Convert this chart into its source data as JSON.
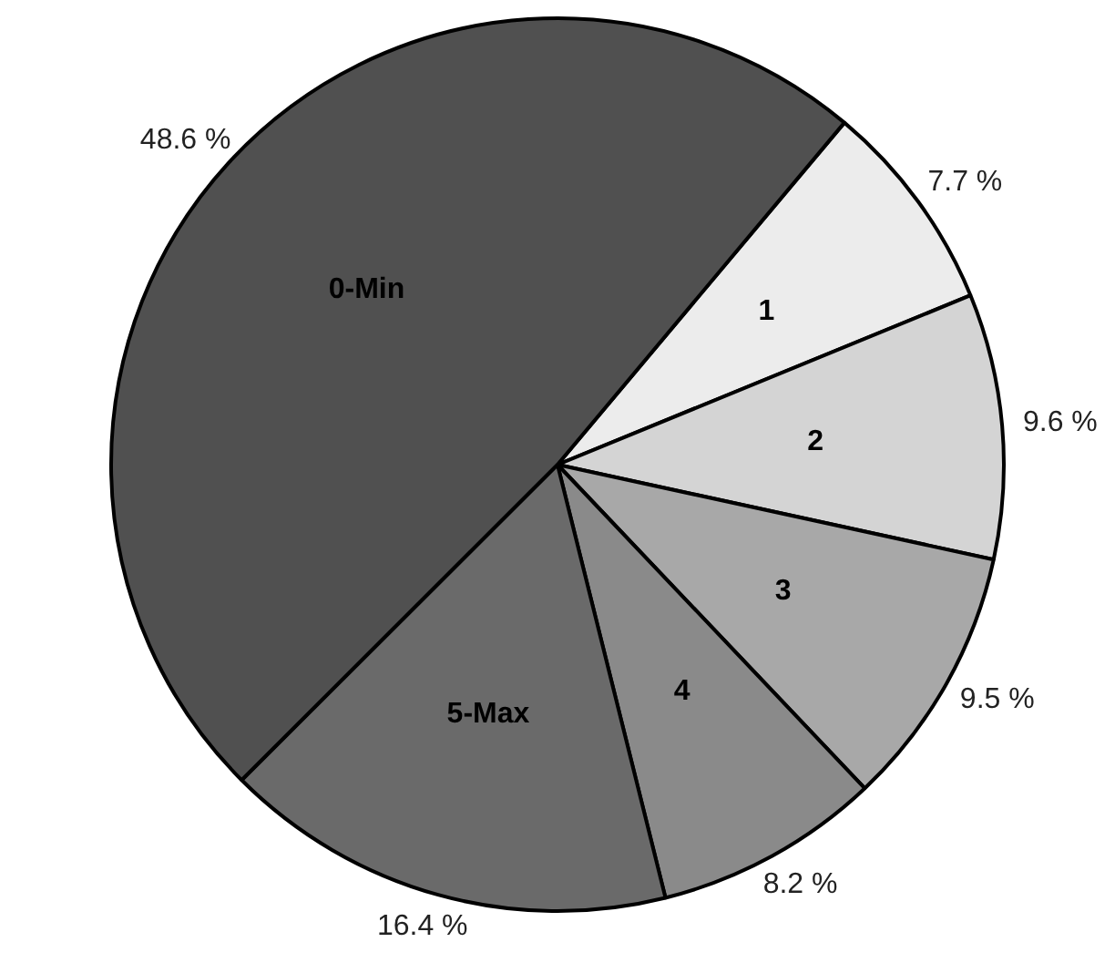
{
  "chart_data": {
    "type": "pie",
    "categories": [
      "1",
      "2",
      "3",
      "4",
      "5-Max",
      "0-Min"
    ],
    "values": [
      7.7,
      9.6,
      9.5,
      8.2,
      16.4,
      48.6
    ],
    "colors": [
      "#ececec",
      "#d4d4d4",
      "#a8a8a8",
      "#8a8a8a",
      "#6a6a6a",
      "#505050"
    ],
    "value_labels": [
      "7.7 %",
      "9.6 %",
      "9.5 %",
      "8.2 %",
      "16.4 %",
      "48.6 %"
    ],
    "legend": false
  }
}
